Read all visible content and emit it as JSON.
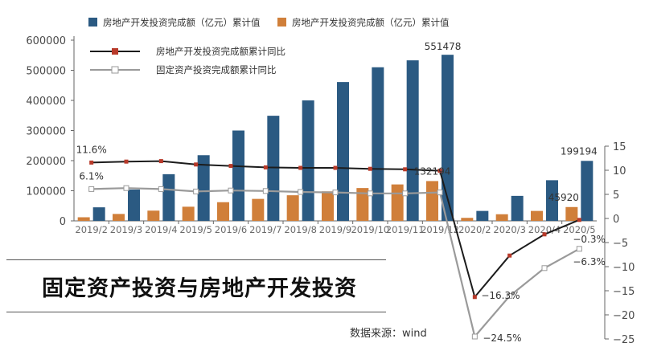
{
  "chart_data": {
    "type": "bar+line",
    "title": "固定资产投资与房地产开发投资",
    "source": "数据来源：wind",
    "categories": [
      "2019/2",
      "2019/3",
      "2019/4",
      "2019/5",
      "2019/6",
      "2019/7",
      "2019/8",
      "2019/9",
      "2019/10",
      "2019/11",
      "2019/12",
      "2020/2",
      "2020/3",
      "2020/4",
      "2020/5"
    ],
    "y_left": {
      "min": 0,
      "max": 600000,
      "ticks": [
        0,
        100000,
        200000,
        300000,
        400000,
        500000,
        600000
      ]
    },
    "y_right": {
      "min": -25,
      "max": 15,
      "ticks": [
        15,
        10,
        5,
        0,
        -5,
        -10,
        -15,
        -20,
        -25
      ]
    },
    "series": [
      {
        "name": "房地产开发投资完成额（亿元）累计值",
        "kind": "bar",
        "axis": "left",
        "color": "#2b5a82",
        "values": [
          45000,
          104000,
          155000,
          218000,
          300000,
          349000,
          400000,
          461000,
          510000,
          533000,
          551478,
          33000,
          83000,
          135000,
          199194
        ]
      },
      {
        "name": "房地产开发投资完成额（亿元）累计值",
        "kind": "bar",
        "axis": "left",
        "color": "#d07f3a",
        "values": [
          12000,
          23000,
          34000,
          47000,
          62000,
          73000,
          85000,
          98000,
          109000,
          121000,
          132194,
          10000,
          22000,
          33000,
          45920
        ]
      },
      {
        "name": "房地产开发投资完成额累计同比",
        "kind": "line",
        "axis": "right",
        "color": "#1c1c1c",
        "marker_color": "#b83a2a",
        "values": [
          11.6,
          11.8,
          11.9,
          11.2,
          10.9,
          10.6,
          10.5,
          10.5,
          10.3,
          10.2,
          9.9,
          -16.3,
          -7.7,
          -3.3,
          -0.3
        ]
      },
      {
        "name": "固定资产投资完成额累计同比",
        "kind": "line",
        "axis": "right",
        "color": "#9a9a9a",
        "marker_color": "#cfcfcf",
        "values": [
          6.1,
          6.3,
          6.1,
          5.6,
          5.8,
          5.7,
          5.5,
          5.4,
          5.2,
          5.2,
          5.4,
          -24.5,
          -16.1,
          -10.3,
          -6.3
        ]
      }
    ],
    "data_labels": [
      {
        "series": 0,
        "index": 10,
        "text": "551478"
      },
      {
        "series": 1,
        "index": 10,
        "text": "132194"
      },
      {
        "series": 0,
        "index": 14,
        "text": "199194"
      },
      {
        "series": 1,
        "index": 14,
        "text": "45920"
      },
      {
        "series": 2,
        "index": 0,
        "text": "11.6%"
      },
      {
        "series": 3,
        "index": 0,
        "text": "6.1%"
      },
      {
        "series": 2,
        "index": 11,
        "text": "−16.3%"
      },
      {
        "series": 3,
        "index": 11,
        "text": "−24.5%"
      },
      {
        "series": 2,
        "index": 14,
        "text": "−0.3%"
      },
      {
        "series": 3,
        "index": 14,
        "text": "−6.3%"
      }
    ]
  }
}
